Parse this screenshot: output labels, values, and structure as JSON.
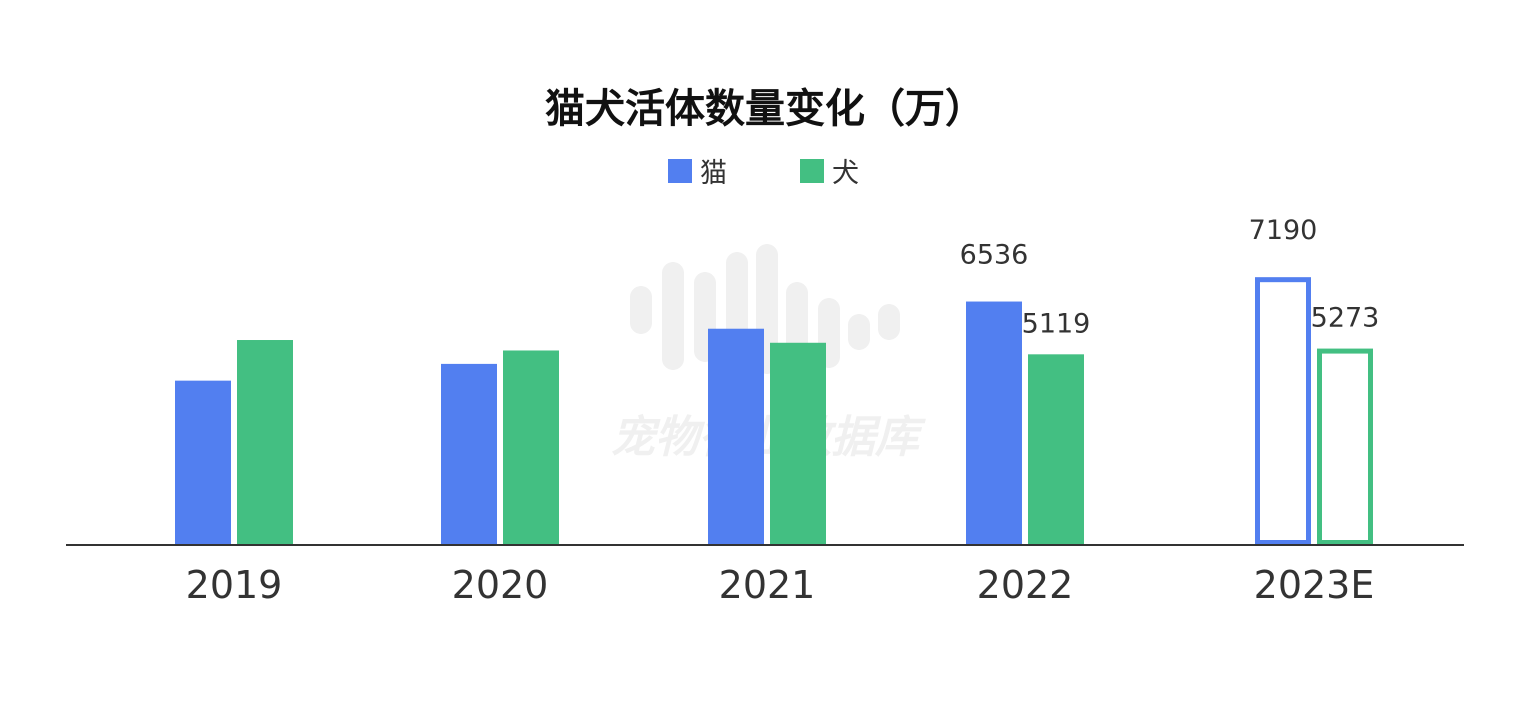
{
  "chart_data": {
    "type": "bar",
    "title": "猫犬活体数量变化（万）",
    "categories": [
      "2019",
      "2020",
      "2021",
      "2022",
      "2023E"
    ],
    "series": [
      {
        "name": "猫",
        "color": "#527ff0",
        "values": [
          4412,
          4862,
          5806,
          6536,
          7190
        ],
        "labels": [
          "",
          "",
          "",
          "6536",
          "7190"
        ]
      },
      {
        "name": "犬",
        "color": "#43bf82",
        "values": [
          5503,
          5222,
          5429,
          5119,
          5273
        ],
        "labels": [
          "",
          "",
          "",
          "5119",
          "5273"
        ]
      }
    ],
    "estimated_categories": [
      "2023E"
    ],
    "ylim": [
      0,
      7700
    ],
    "legend": "top-center",
    "grid": false
  },
  "watermark": {
    "text": "宠物行业数据库"
  }
}
